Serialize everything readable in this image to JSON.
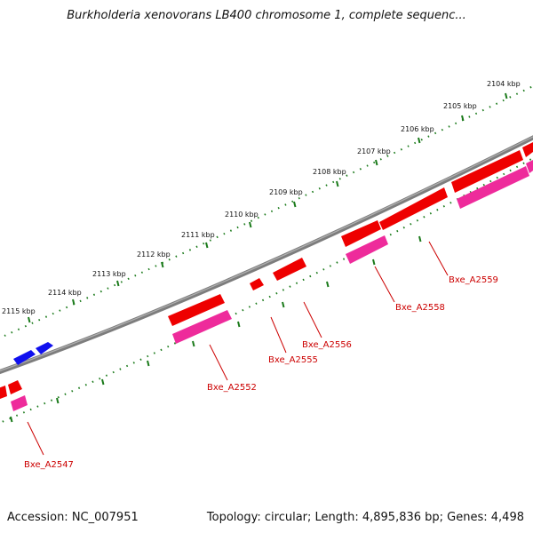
{
  "title": "Burkholderia xenovorans LB400 chromosome 1, complete sequenc...",
  "footer": {
    "accession": "Accession: NC_007951",
    "summary": "Topology: circular; Length: 4,895,836 bp; Genes: 4,498"
  },
  "colors": {
    "backbone": "#7d7d7d",
    "tick": "#1a7a1a",
    "forward_gene": "#ee0000",
    "reverse_gene": "#1010ee",
    "cds": "#ee2b9b",
    "label": "#cc0000"
  },
  "scale": {
    "unit": "kbp",
    "labels": [
      "2104 kbp",
      "2105 kbp",
      "2106 kbp",
      "2107 kbp",
      "2108 kbp",
      "2109 kbp",
      "2110 kbp",
      "2111 kbp",
      "2112 kbp",
      "2113 kbp",
      "2114 kbp",
      "2115 kbp"
    ]
  },
  "gene_labels": [
    "Bxe_A2559",
    "Bxe_A2558",
    "Bxe_A2556",
    "Bxe_A2555",
    "Bxe_A2552",
    "Bxe_A2547"
  ]
}
